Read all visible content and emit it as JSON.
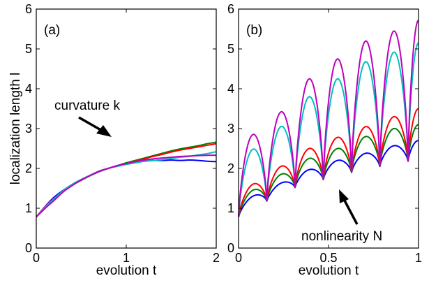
{
  "chart_data": [
    {
      "type": "line",
      "panel_label": "(a)",
      "xlabel": "evolution t",
      "ylabel": "localization length l",
      "xlim": [
        0,
        2
      ],
      "ylim": [
        0,
        6
      ],
      "x_ticks": [
        "0",
        "1",
        "2"
      ],
      "y_ticks": [
        "0",
        "1",
        "2",
        "3",
        "4",
        "5",
        "6"
      ],
      "grid": false,
      "annotation": "curvature k",
      "colors": [
        "#0000ff",
        "#008000",
        "#ff0000",
        "#00bfbf",
        "#bf00bf"
      ],
      "series": [
        {
          "color": "#0000ff",
          "x": [
            0,
            0.1,
            0.2,
            0.3,
            0.4,
            0.5,
            0.6,
            0.7,
            0.8,
            0.9,
            1.0,
            1.1,
            1.2,
            1.3,
            1.4,
            1.5,
            1.6,
            1.7,
            1.8,
            1.9,
            2.0
          ],
          "values": [
            0.78,
            1.05,
            1.28,
            1.45,
            1.6,
            1.72,
            1.82,
            1.92,
            2.0,
            2.06,
            2.11,
            2.15,
            2.18,
            2.2,
            2.2,
            2.21,
            2.2,
            2.21,
            2.2,
            2.18,
            2.17
          ]
        },
        {
          "color": "#008000",
          "x": [
            0,
            0.1,
            0.2,
            0.3,
            0.4,
            0.5,
            0.6,
            0.7,
            0.8,
            0.9,
            1.0,
            1.1,
            1.2,
            1.3,
            1.4,
            1.5,
            1.6,
            1.7,
            1.8,
            1.9,
            2.0
          ],
          "values": [
            0.78,
            1.02,
            1.22,
            1.42,
            1.58,
            1.7,
            1.82,
            1.93,
            2.0,
            2.07,
            2.14,
            2.2,
            2.26,
            2.32,
            2.38,
            2.44,
            2.49,
            2.53,
            2.57,
            2.62,
            2.66
          ]
        },
        {
          "color": "#ff0000",
          "x": [
            0,
            0.1,
            0.2,
            0.3,
            0.4,
            0.5,
            0.6,
            0.7,
            0.8,
            0.9,
            1.0,
            1.1,
            1.2,
            1.3,
            1.4,
            1.5,
            1.6,
            1.7,
            1.8,
            1.9,
            2.0
          ],
          "values": [
            0.78,
            1.04,
            1.25,
            1.43,
            1.59,
            1.72,
            1.83,
            1.93,
            2.0,
            2.06,
            2.12,
            2.18,
            2.24,
            2.3,
            2.35,
            2.41,
            2.46,
            2.5,
            2.54,
            2.58,
            2.62
          ]
        },
        {
          "color": "#00bfbf",
          "x": [
            0,
            0.1,
            0.2,
            0.3,
            0.4,
            0.5,
            0.6,
            0.7,
            0.8,
            0.9,
            1.0,
            1.1,
            1.2,
            1.3,
            1.4,
            1.5,
            1.6,
            1.7,
            1.8,
            1.9,
            2.0
          ],
          "values": [
            0.78,
            1.03,
            1.24,
            1.44,
            1.6,
            1.72,
            1.83,
            1.93,
            2.0,
            2.05,
            2.1,
            2.14,
            2.18,
            2.2,
            2.22,
            2.25,
            2.28,
            2.3,
            2.34,
            2.37,
            2.42
          ]
        },
        {
          "color": "#bf00bf",
          "x": [
            0,
            0.1,
            0.2,
            0.3,
            0.4,
            0.5,
            0.6,
            0.7,
            0.8,
            0.9,
            1.0,
            1.1,
            1.2,
            1.3,
            1.4,
            1.5,
            1.6,
            1.7,
            1.8,
            1.9,
            2.0
          ],
          "values": [
            0.78,
            1.0,
            1.2,
            1.41,
            1.57,
            1.71,
            1.82,
            1.93,
            2.0,
            2.07,
            2.12,
            2.17,
            2.21,
            2.24,
            2.26,
            2.28,
            2.3,
            2.31,
            2.32,
            2.33,
            2.33
          ]
        }
      ]
    },
    {
      "type": "line",
      "panel_label": "(b)",
      "xlabel": "evolution t",
      "ylabel": "",
      "xlim": [
        0,
        1
      ],
      "ylim": [
        0,
        6
      ],
      "x_ticks": [
        "0",
        "0.5",
        "1"
      ],
      "y_ticks": [
        "0",
        "1",
        "2",
        "3",
        "4",
        "5",
        "6"
      ],
      "grid": false,
      "annotation": "nonlinearity N",
      "period": 0.157,
      "colors": [
        "#0000ff",
        "#008000",
        "#ff0000",
        "#00bfbf",
        "#bf00bf"
      ],
      "series": [
        {
          "color": "#0000ff",
          "x": [
            0,
            0.078,
            0.157,
            0.235,
            0.314,
            0.392,
            0.471,
            0.549,
            0.628,
            0.706,
            0.785,
            0.863,
            0.942,
            1.0
          ],
          "values": [
            0.78,
            1.3,
            1.18,
            1.63,
            1.52,
            1.97,
            1.72,
            2.2,
            1.9,
            2.38,
            2.05,
            2.57,
            2.18,
            2.7
          ]
        },
        {
          "color": "#008000",
          "x": [
            0,
            0.078,
            0.157,
            0.235,
            0.314,
            0.392,
            0.471,
            0.549,
            0.628,
            0.706,
            0.785,
            0.863,
            0.942,
            1.0
          ],
          "values": [
            0.78,
            1.45,
            1.18,
            1.85,
            1.52,
            2.25,
            1.72,
            2.5,
            1.9,
            2.8,
            2.05,
            3.0,
            2.18,
            3.1
          ]
        },
        {
          "color": "#ff0000",
          "x": [
            0,
            0.078,
            0.157,
            0.235,
            0.314,
            0.392,
            0.471,
            0.549,
            0.628,
            0.706,
            0.785,
            0.863,
            0.942,
            1.0
          ],
          "values": [
            0.78,
            1.6,
            1.18,
            2.05,
            1.52,
            2.5,
            1.72,
            2.78,
            1.9,
            3.05,
            2.05,
            3.3,
            2.18,
            3.5
          ]
        },
        {
          "color": "#00bfbf",
          "x": [
            0,
            0.078,
            0.157,
            0.235,
            0.314,
            0.392,
            0.471,
            0.549,
            0.628,
            0.706,
            0.785,
            0.863,
            0.942,
            1.0
          ],
          "values": [
            0.78,
            2.48,
            1.18,
            3.05,
            1.52,
            3.8,
            1.72,
            4.25,
            1.9,
            4.68,
            2.05,
            4.92,
            2.18,
            5.15
          ]
        },
        {
          "color": "#bf00bf",
          "x": [
            0,
            0.078,
            0.157,
            0.235,
            0.314,
            0.392,
            0.471,
            0.549,
            0.628,
            0.706,
            0.785,
            0.863,
            0.942,
            1.0
          ],
          "values": [
            0.78,
            2.85,
            1.18,
            3.42,
            1.52,
            4.25,
            1.72,
            4.75,
            1.9,
            5.2,
            2.05,
            5.45,
            2.18,
            5.72
          ]
        }
      ]
    }
  ]
}
